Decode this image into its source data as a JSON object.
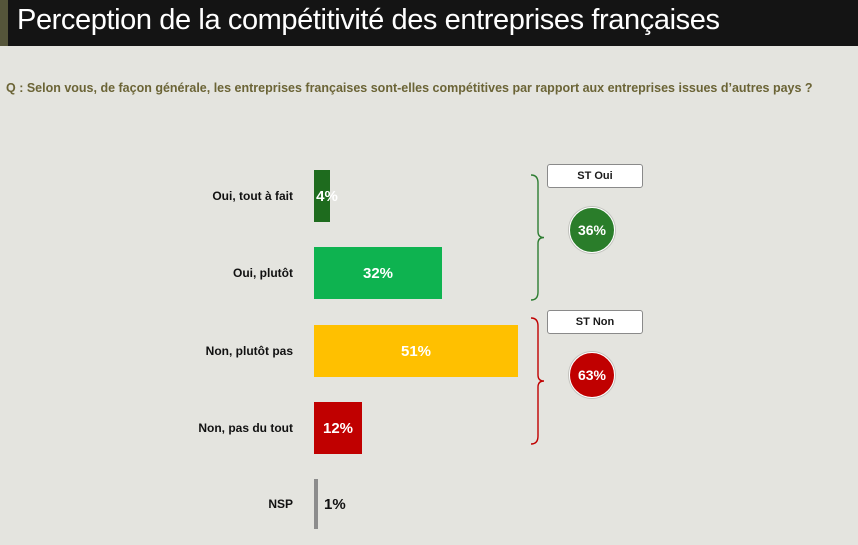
{
  "title": "Perception de la compétitivité des entreprises françaises",
  "question": "Q : Selon vous, de façon générale, les entreprises françaises sont-elles compétitives par rapport aux entreprises issues d’autres pays ?",
  "chart_data": {
    "type": "bar",
    "orientation": "horizontal",
    "categories": [
      "Oui, tout à fait",
      "Oui, plutôt",
      "Non, plutôt pas",
      "Non, pas du tout",
      "NSP"
    ],
    "values": [
      4,
      32,
      51,
      12,
      1
    ],
    "value_labels": [
      "4%",
      "32%",
      "51%",
      "12%",
      "1%"
    ],
    "colors": [
      "#1e6b1e",
      "#0eb350",
      "#ffc000",
      "#c00000",
      "#8c8c8c"
    ]
  },
  "summaries": [
    {
      "label": "ST Oui",
      "value": "36%",
      "color": "#2a7d2a",
      "bracket_color": "#2e7d32"
    },
    {
      "label": "ST Non",
      "value": "63%",
      "color": "#c00000",
      "bracket_color": "#c00000"
    }
  ]
}
